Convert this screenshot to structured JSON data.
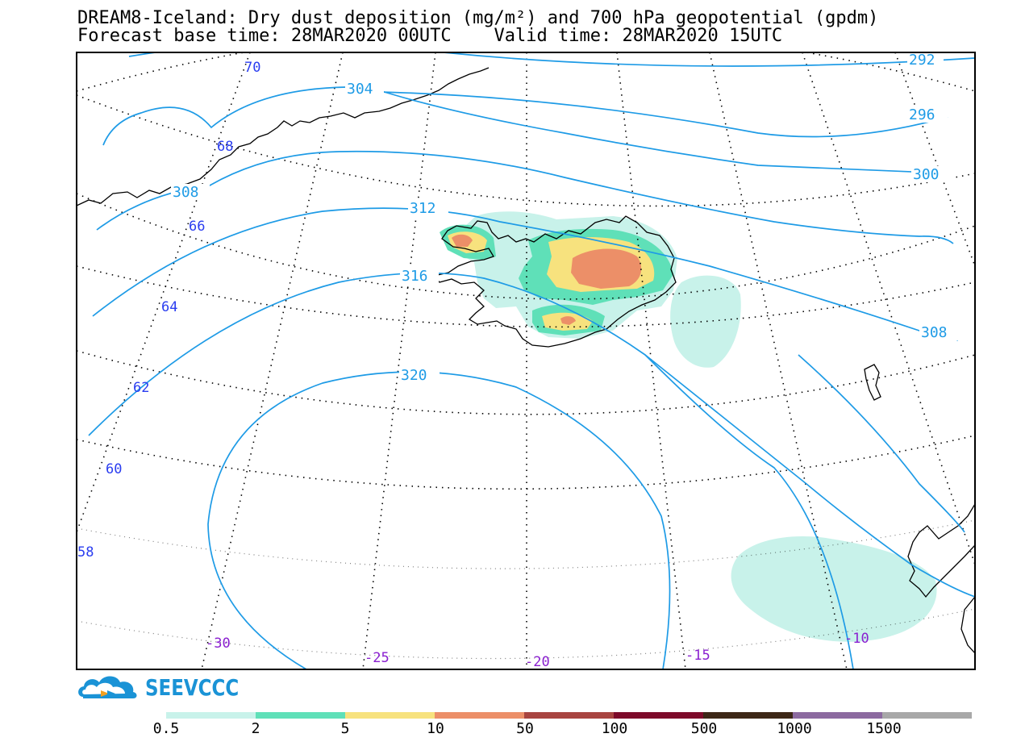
{
  "title": {
    "line1": "DREAM8-Iceland: Dry dust deposition (mg/m²) and 700 hPa geopotential (gpdm)",
    "line2": "Forecast base time: 28MAR2020 00UTC    Valid time: 28MAR2020 15UTC"
  },
  "map": {
    "region": "Iceland",
    "variable": "Dry dust deposition",
    "units": "mg/m²",
    "overlay": "700 hPa geopotential",
    "overlay_units": "gpdm",
    "geopotential_contour_labels": [
      "292",
      "296",
      "300",
      "304",
      "308",
      "308",
      "312",
      "316",
      "320"
    ],
    "latitude_labels": [
      "70",
      "68",
      "66",
      "64",
      "62",
      "60",
      "58"
    ],
    "longitude_labels": [
      "-30",
      "-25",
      "-20",
      "-15",
      "-10"
    ],
    "contour_color": "#1e9be6",
    "lat_label_color": "#2a3df0",
    "lon_label_color": "#8a1fd0"
  },
  "logo": {
    "text": "SEEVCCC",
    "icon": "cloud-logo-icon"
  },
  "colorbar": {
    "colors": [
      "#c8f2ea",
      "#5fe0b8",
      "#f7e27e",
      "#ec8f68",
      "#a84440",
      "#7d0a2a",
      "#3d2717",
      "#8c6aa0",
      "#a8a8a8"
    ],
    "labels": [
      "0.5",
      "2",
      "5",
      "10",
      "50",
      "100",
      "500",
      "1000",
      "1500"
    ]
  }
}
